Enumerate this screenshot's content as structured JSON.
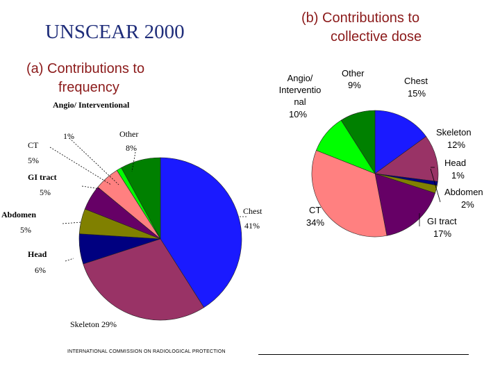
{
  "title": "UNSCEAR 2000",
  "footer": "INTERNATIONAL COMMISSION ON RADIOLOGICAL PROTECTION",
  "chart_data": [
    {
      "type": "pie",
      "title_line1": "(a) Contributions to",
      "title_line2": "frequency",
      "slices": [
        {
          "name": "Chest",
          "pct_label": "41%",
          "value": 41,
          "color": "#1a1aff"
        },
        {
          "name": "Skeleton",
          "pct_label": "29%",
          "value": 29,
          "color": "#993366"
        },
        {
          "name": "Head",
          "pct_label": "6%",
          "value": 6,
          "color": "#000080"
        },
        {
          "name": "Abdomen",
          "pct_label": "5%",
          "value": 5,
          "color": "#808000"
        },
        {
          "name": "GI tract",
          "pct_label": "5%",
          "value": 5,
          "color": "#660066"
        },
        {
          "name": "CT",
          "pct_label": "5%",
          "value": 5,
          "color": "#ff8080"
        },
        {
          "name": "Angio/ Interventional",
          "pct_label": "1%",
          "value": 1,
          "color": "#00ff00"
        },
        {
          "name": "Other",
          "pct_label": "8%",
          "value": 8,
          "color": "#008000"
        }
      ]
    },
    {
      "type": "pie",
      "title_line1": "(b) Contributions to",
      "title_line2": "collective dose",
      "slices": [
        {
          "name": "Chest",
          "pct_label": "15%",
          "value": 15,
          "color": "#1a1aff"
        },
        {
          "name": "Skeleton",
          "pct_label": "12%",
          "value": 12,
          "color": "#993366"
        },
        {
          "name": "Head",
          "pct_label": "1%",
          "value": 1,
          "color": "#000080"
        },
        {
          "name": "Abdomen",
          "pct_label": "2%",
          "value": 2,
          "color": "#808000"
        },
        {
          "name": "GI tract",
          "pct_label": "17%",
          "value": 17,
          "color": "#660066"
        },
        {
          "name": "CT",
          "pct_label": "34%",
          "value": 34,
          "color": "#ff8080"
        },
        {
          "name": "Angio/ Interventio nal",
          "pct_label": "10%",
          "value": 10,
          "color": "#00ff00"
        },
        {
          "name": "Other",
          "pct_label": "9%",
          "value": 9,
          "color": "#008000"
        }
      ]
    }
  ]
}
